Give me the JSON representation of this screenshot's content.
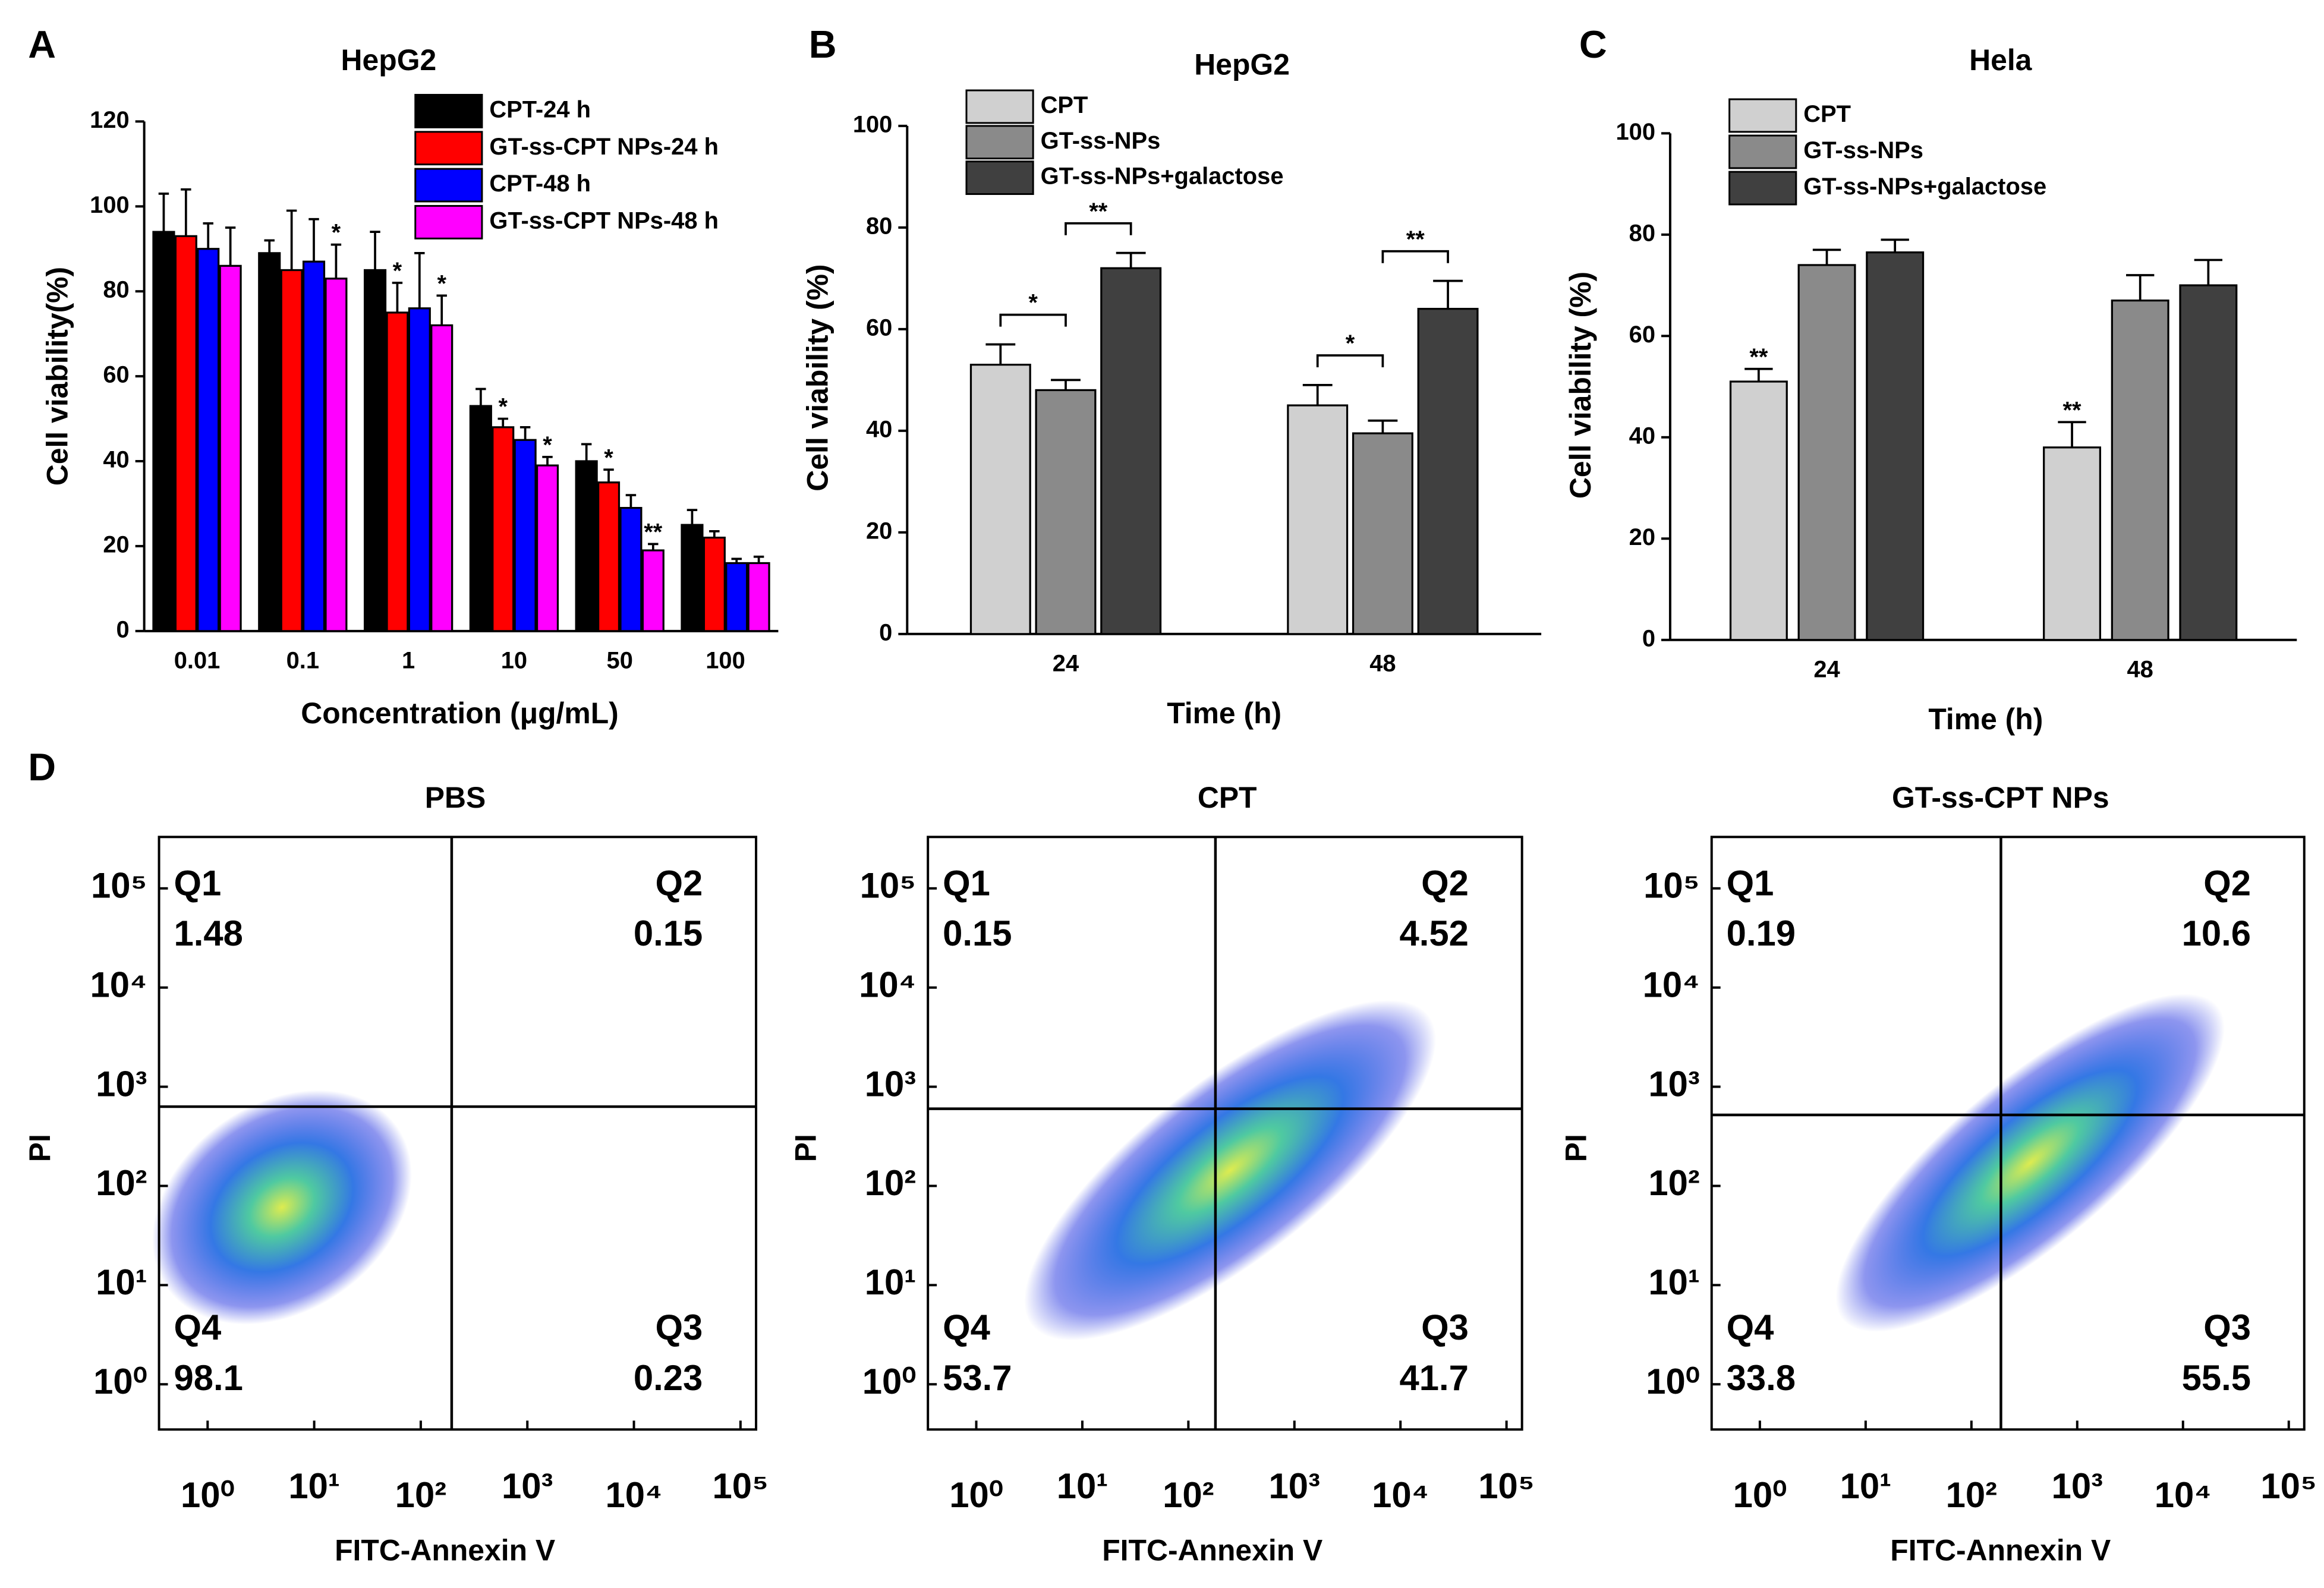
{
  "chart_data": [
    {
      "type": "bar",
      "panel": "A",
      "title": "HepG2",
      "xlabel": "Concentration (μg/mL)",
      "ylabel": "Cell viability(%)",
      "categories": [
        "0.01",
        "0.1",
        "1",
        "10",
        "50",
        "100"
      ],
      "series": [
        {
          "name": "CPT-24 h",
          "color": "#000000",
          "values": [
            94,
            89,
            85,
            53,
            40,
            25
          ],
          "errors": [
            9,
            3,
            9,
            4,
            4,
            3.5
          ],
          "significance": [
            null,
            null,
            null,
            null,
            null,
            null
          ]
        },
        {
          "name": "GT-ss-CPT NPs-24 h",
          "color": "#ff0000",
          "values": [
            93,
            85,
            75,
            48,
            35,
            22
          ],
          "errors": [
            11,
            14,
            7,
            2,
            3,
            1.5
          ],
          "significance": [
            null,
            null,
            "*",
            "*",
            "*",
            null
          ]
        },
        {
          "name": "CPT-48 h",
          "color": "#0000ff",
          "values": [
            90,
            87,
            76,
            45,
            29,
            16
          ],
          "errors": [
            6,
            10,
            13,
            3,
            3,
            1
          ],
          "significance": [
            null,
            null,
            null,
            null,
            null,
            null
          ]
        },
        {
          "name": "GT-ss-CPT NPs-48 h",
          "color": "#ff00ff",
          "values": [
            86,
            83,
            72,
            39,
            19,
            16
          ],
          "errors": [
            9,
            8,
            7,
            2,
            1.5,
            1.5
          ],
          "significance": [
            null,
            "*",
            "*",
            "*",
            "**",
            null
          ]
        }
      ],
      "ylim": [
        0,
        120
      ],
      "yticks": [
        0,
        20,
        40,
        60,
        80,
        100,
        120
      ],
      "legend": "upper right"
    },
    {
      "type": "bar",
      "panel": "B",
      "title": "HepG2",
      "xlabel": "Time (h)",
      "ylabel": "Cell viability (%)",
      "categories": [
        "24",
        "48"
      ],
      "series": [
        {
          "name": "CPT",
          "color": "#d0d0d0",
          "values": [
            53,
            45
          ],
          "errors": [
            4,
            4
          ]
        },
        {
          "name": "GT-ss-NPs",
          "color": "#8a8a8a",
          "values": [
            48,
            39.5
          ],
          "errors": [
            2,
            2.5
          ]
        },
        {
          "name": "GT-ss-NPs+galactose",
          "color": "#404040",
          "values": [
            72,
            64
          ],
          "errors": [
            3,
            5.5
          ]
        }
      ],
      "brackets": [
        [
          "*",
          "**"
        ],
        [
          "*",
          "**"
        ]
      ],
      "ylim": [
        0,
        100
      ],
      "yticks": [
        0,
        20,
        40,
        60,
        80,
        100
      ],
      "legend": "upper left"
    },
    {
      "type": "bar",
      "panel": "C",
      "title": "Hela",
      "xlabel": "Time (h)",
      "ylabel": "Cell viability (%)",
      "categories": [
        "24",
        "48"
      ],
      "series": [
        {
          "name": "CPT",
          "color": "#d0d0d0",
          "values": [
            51,
            38
          ],
          "errors": [
            2.5,
            5
          ],
          "significance": [
            "**",
            "**"
          ]
        },
        {
          "name": "GT-ss-NPs",
          "color": "#8a8a8a",
          "values": [
            74,
            67
          ],
          "errors": [
            3,
            5
          ]
        },
        {
          "name": "GT-ss-NPs+galactose",
          "color": "#404040",
          "values": [
            76.5,
            70
          ],
          "errors": [
            2.5,
            5
          ]
        }
      ],
      "ylim": [
        0,
        100
      ],
      "yticks": [
        0,
        20,
        40,
        60,
        80,
        100
      ],
      "legend": "upper left"
    },
    {
      "type": "flow",
      "panel": "D",
      "title": "PBS",
      "xlabel": "FITC-Annexin V",
      "ylabel": "PI",
      "xscale": "log",
      "yscale": "log",
      "xlim": [
        0.35,
        140000
      ],
      "ylim": [
        0.35,
        330000
      ],
      "xticks": [
        {
          "value": 1,
          "label": "10⁰"
        },
        {
          "value": 10,
          "label": "10¹"
        },
        {
          "value": 100,
          "label": "10²"
        },
        {
          "value": 1000,
          "label": "10³"
        },
        {
          "value": 10000,
          "label": "10⁴"
        },
        {
          "value": 100000,
          "label": "10⁵"
        }
      ],
      "yticks": [
        {
          "value": 1,
          "label": "10⁰"
        },
        {
          "value": 10,
          "label": "10¹"
        },
        {
          "value": 100,
          "label": "10²"
        },
        {
          "value": 1000,
          "label": "10³"
        },
        {
          "value": 10000,
          "label": "10⁴"
        },
        {
          "value": 100000,
          "label": "10⁵"
        }
      ],
      "gate": [
        195,
        630
      ],
      "quadrants": [
        {
          "name": "Q1",
          "value": 1.48
        },
        {
          "name": "Q2",
          "value": 0.15
        },
        {
          "name": "Q3",
          "value": 0.23
        },
        {
          "name": "Q4",
          "value": 98.1
        }
      ]
    },
    {
      "type": "flow",
      "title": "CPT",
      "xlabel": "FITC-Annexin V",
      "ylabel": "PI",
      "xscale": "log",
      "yscale": "log",
      "xlim": [
        0.35,
        140000
      ],
      "ylim": [
        0.35,
        330000
      ],
      "xticks": [
        {
          "value": 1,
          "label": "10⁰"
        },
        {
          "value": 10,
          "label": "10¹"
        },
        {
          "value": 100,
          "label": "10²"
        },
        {
          "value": 1000,
          "label": "10³"
        },
        {
          "value": 10000,
          "label": "10⁴"
        },
        {
          "value": 100000,
          "label": "10⁵"
        }
      ],
      "yticks": [
        {
          "value": 1,
          "label": "10⁰"
        },
        {
          "value": 10,
          "label": "10¹"
        },
        {
          "value": 100,
          "label": "10²"
        },
        {
          "value": 1000,
          "label": "10³"
        },
        {
          "value": 10000,
          "label": "10⁴"
        },
        {
          "value": 100000,
          "label": "10⁵"
        }
      ],
      "gate": [
        180,
        600
      ],
      "quadrants": [
        {
          "name": "Q1",
          "value": 0.15
        },
        {
          "name": "Q2",
          "value": 4.52
        },
        {
          "name": "Q3",
          "value": 41.7
        },
        {
          "name": "Q4",
          "value": 53.7
        }
      ]
    },
    {
      "type": "flow",
      "title": "GT-ss-CPT NPs",
      "xlabel": "FITC-Annexin V",
      "ylabel": "PI",
      "xscale": "log",
      "yscale": "log",
      "xlim": [
        0.35,
        140000
      ],
      "ylim": [
        0.35,
        330000
      ],
      "xticks": [
        {
          "value": 1,
          "label": "10⁰"
        },
        {
          "value": 10,
          "label": "10¹"
        },
        {
          "value": 100,
          "label": "10²"
        },
        {
          "value": 1000,
          "label": "10³"
        },
        {
          "value": 10000,
          "label": "10⁴"
        },
        {
          "value": 100000,
          "label": "10⁵"
        }
      ],
      "yticks": [
        {
          "value": 1,
          "label": "10⁰"
        },
        {
          "value": 10,
          "label": "10¹"
        },
        {
          "value": 100,
          "label": "10²"
        },
        {
          "value": 1000,
          "label": "10³"
        },
        {
          "value": 10000,
          "label": "10⁴"
        },
        {
          "value": 100000,
          "label": "10⁵"
        }
      ],
      "gate": [
        190,
        520
      ],
      "quadrants": [
        {
          "name": "Q1",
          "value": 0.19
        },
        {
          "name": "Q2",
          "value": 10.6
        },
        {
          "name": "Q3",
          "value": 55.5
        },
        {
          "name": "Q4",
          "value": 33.8
        }
      ]
    }
  ]
}
